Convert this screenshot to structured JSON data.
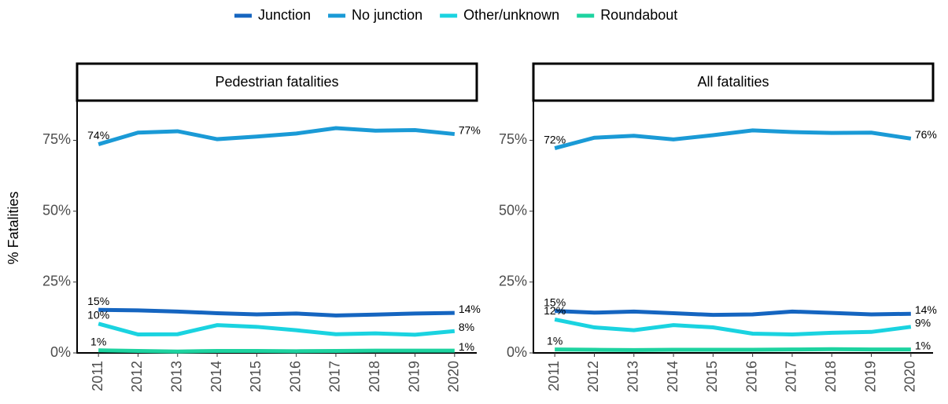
{
  "chart_data": {
    "type": "line",
    "ylabel": "% Fatalities",
    "x": [
      2011,
      2012,
      2013,
      2014,
      2015,
      2016,
      2017,
      2018,
      2019,
      2020
    ],
    "xlim": [
      2010.46,
      2020.56
    ],
    "ylim": [
      0,
      89
    ],
    "yticks": [
      {
        "value": 0,
        "label": "0%"
      },
      {
        "value": 25,
        "label": "25%"
      },
      {
        "value": 50,
        "label": "50%"
      },
      {
        "value": 75,
        "label": "75%"
      }
    ],
    "series": [
      {
        "name": "Junction",
        "color": "#1565c0"
      },
      {
        "name": "No junction",
        "color": "#1a9ad6"
      },
      {
        "name": "Other/unknown",
        "color": "#1ad3e0"
      },
      {
        "name": "Roundabout",
        "color": "#1dd3a0"
      }
    ],
    "facets": [
      {
        "title": "Pedestrian fatalities",
        "series": [
          {
            "values": [
              15.2,
              15.0,
              14.6,
              14.0,
              13.6,
              13.9,
              13.2,
              13.5,
              13.9,
              14.1
            ],
            "value_labels": [
              "15%",
              null,
              null,
              null,
              null,
              null,
              null,
              null,
              null,
              "14%"
            ]
          },
          {
            "values": [
              73.6,
              77.7,
              78.2,
              75.4,
              76.3,
              77.4,
              79.3,
              78.4,
              78.6,
              77.2
            ],
            "value_labels": [
              "74%",
              null,
              null,
              null,
              null,
              null,
              null,
              null,
              null,
              "77%"
            ]
          },
          {
            "values": [
              10.3,
              6.5,
              6.6,
              9.8,
              9.2,
              8.0,
              6.6,
              6.9,
              6.4,
              7.7
            ],
            "value_labels": [
              "10%",
              null,
              null,
              null,
              null,
              null,
              null,
              null,
              null,
              "8%"
            ]
          },
          {
            "values": [
              0.9,
              0.7,
              0.5,
              0.7,
              0.7,
              0.6,
              0.7,
              0.8,
              0.8,
              0.8
            ],
            "value_labels": [
              "1%",
              null,
              null,
              null,
              null,
              null,
              null,
              null,
              null,
              "1%"
            ]
          }
        ]
      },
      {
        "title": "All fatalities",
        "series": [
          {
            "values": [
              14.8,
              14.2,
              14.6,
              14.0,
              13.4,
              13.6,
              14.6,
              14.1,
              13.6,
              13.8
            ],
            "value_labels": [
              "15%",
              null,
              null,
              null,
              null,
              null,
              null,
              null,
              null,
              "14%"
            ]
          },
          {
            "values": [
              72.2,
              75.9,
              76.6,
              75.3,
              76.8,
              78.5,
              77.9,
              77.6,
              77.7,
              75.6
            ],
            "value_labels": [
              "72%",
              null,
              null,
              null,
              null,
              null,
              null,
              null,
              null,
              "76%"
            ]
          },
          {
            "values": [
              11.8,
              9.0,
              8.0,
              9.8,
              9.0,
              6.8,
              6.5,
              7.1,
              7.4,
              9.2
            ],
            "value_labels": [
              "12%",
              null,
              null,
              null,
              null,
              null,
              null,
              null,
              null,
              "9%"
            ]
          },
          {
            "values": [
              1.2,
              1.1,
              1.0,
              1.1,
              1.1,
              1.1,
              1.2,
              1.3,
              1.2,
              1.2
            ],
            "value_labels": [
              "1%",
              null,
              null,
              null,
              null,
              null,
              null,
              null,
              null,
              "1%"
            ]
          }
        ]
      }
    ]
  }
}
